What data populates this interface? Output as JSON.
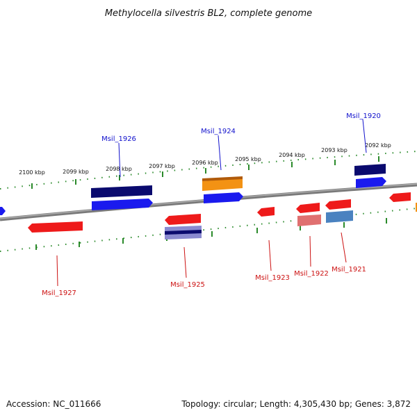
{
  "title": "Methylocella silvestris BL2, complete genome",
  "footer": {
    "accession": "Accession: NC_011666",
    "summary": "Topology: circular; Length: 4,305,430 bp; Genes: 3,872"
  },
  "colors": {
    "backbone": "#808080",
    "tick": "#2a8a2a",
    "label_top": "#1010cc",
    "label_bottom": "#cc1010",
    "forward": "#1a1aee",
    "forward_dark": "#0a0a6e",
    "reverse": "#ee1a1a",
    "orange": "#f39214",
    "pink": "#e07070",
    "steel": "#4a82c0"
  },
  "scale": {
    "unit": "kbp",
    "labels": [
      "2100 kbp",
      "2099 kbp",
      "2098 kbp",
      "2097 kbp",
      "2096 kbp",
      "2095 kbp",
      "2094 kbp",
      "2093 kbp",
      "2092 kbp"
    ]
  },
  "gene_labels": {
    "top": [
      "Msil_1926",
      "Msil_1924",
      "Msil_1920"
    ],
    "bottom": [
      "Msil_1927",
      "Msil_1925",
      "Msil_1923",
      "Msil_1922",
      "Msil_1921"
    ]
  }
}
